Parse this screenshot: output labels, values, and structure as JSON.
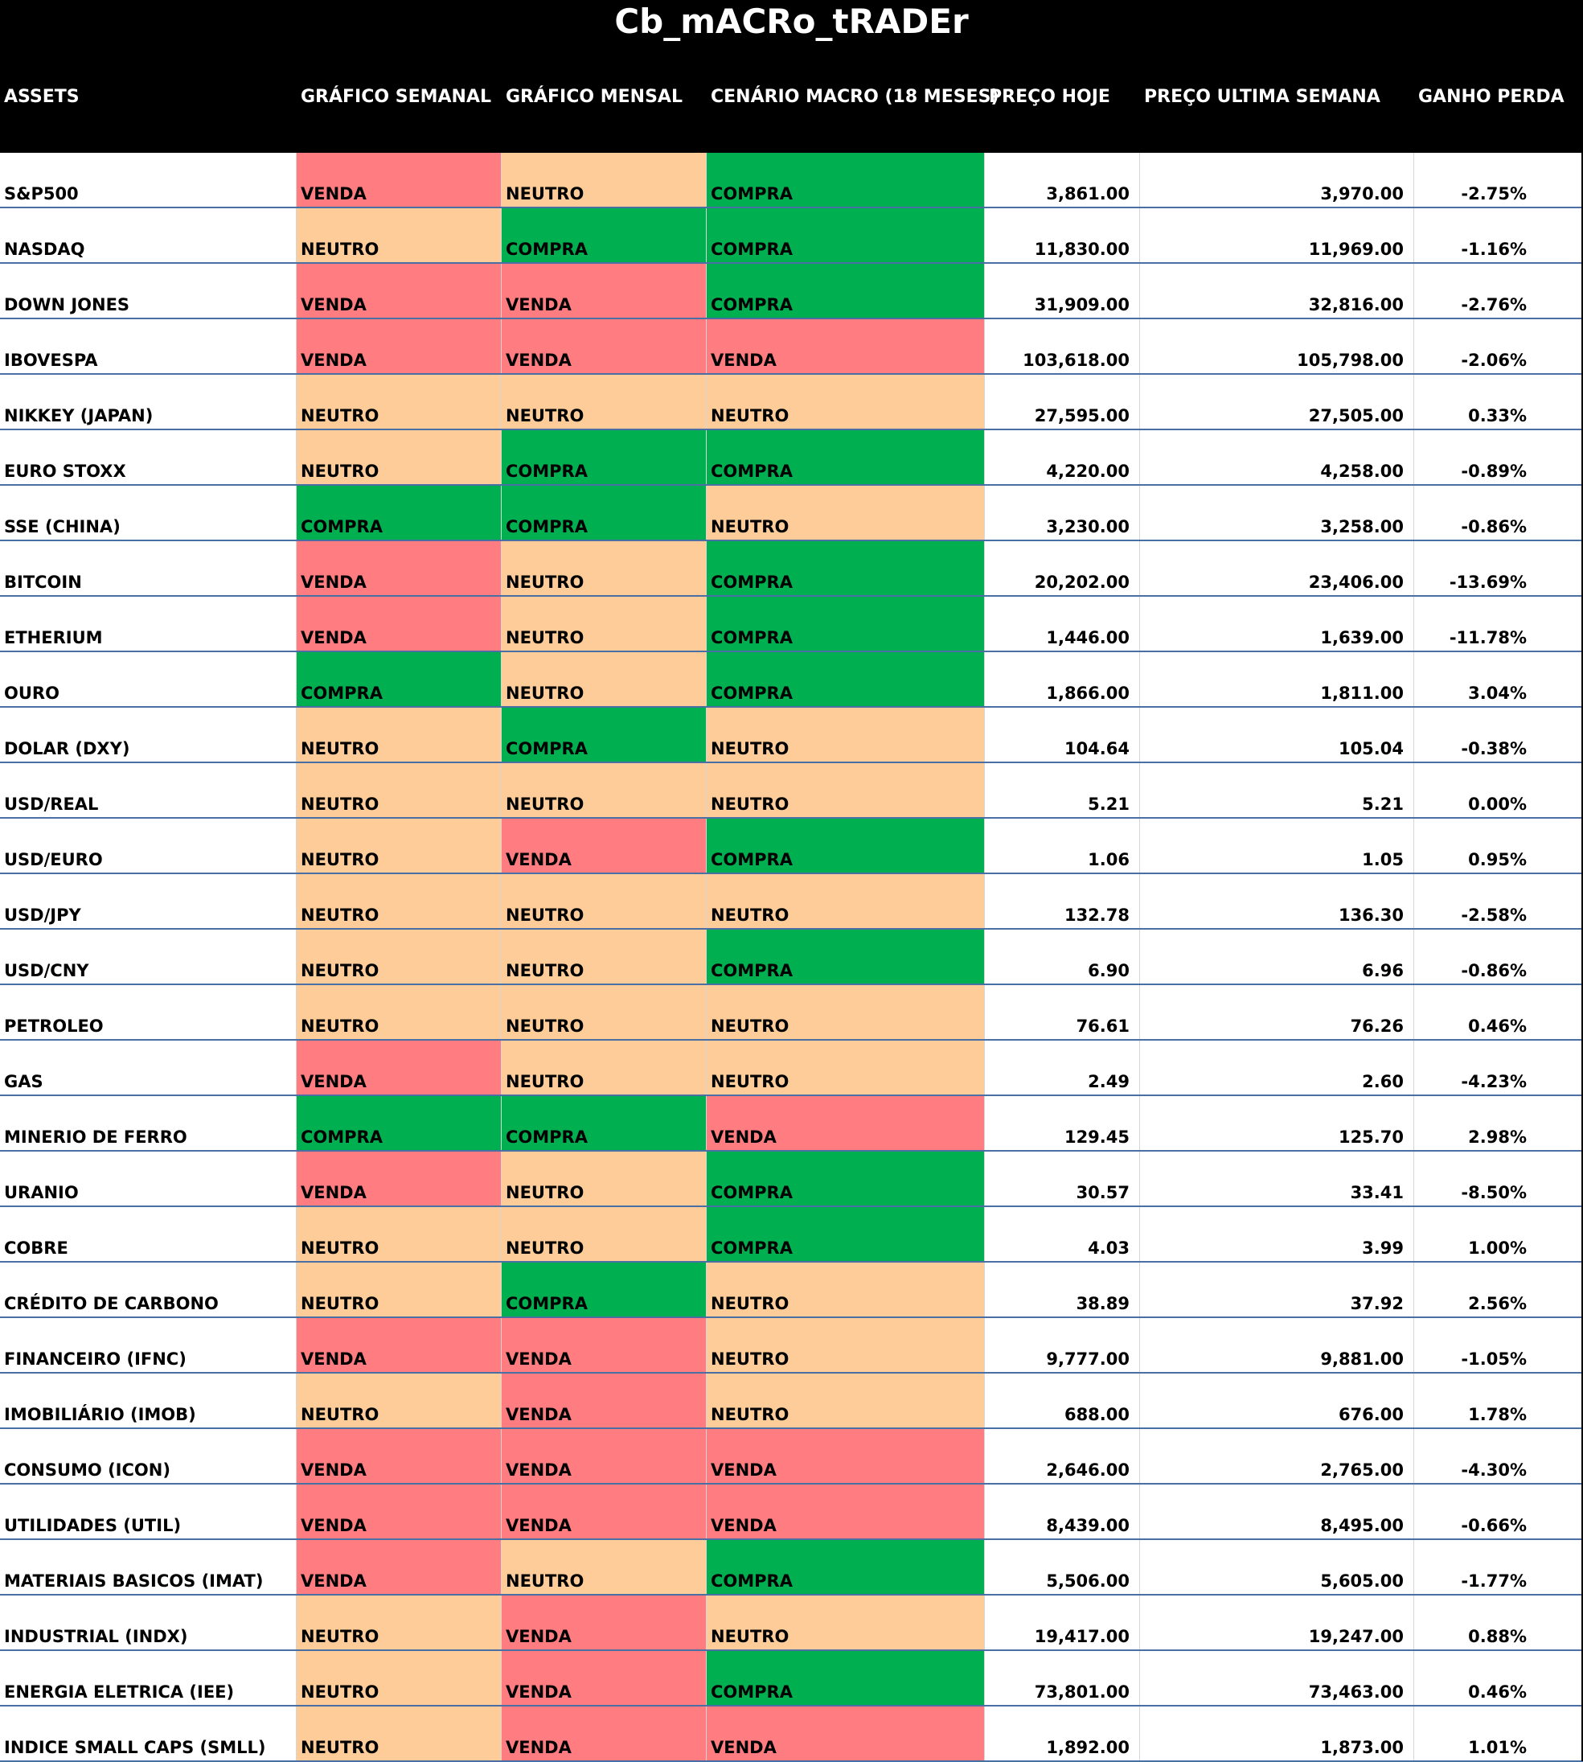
{
  "title": "Cb_mACRo_tRADEr",
  "headers": {
    "assets": "ASSETS",
    "weekly": "GRÁFICO SEMANAL",
    "monthly": "GRÁFICO MENSAL",
    "macro": "CENÁRIO MACRO (18 MESES)",
    "price_today": "PREÇO HOJE",
    "price_last_week": "PREÇO ULTIMA SEMANA",
    "gain_loss": "GANHO PERDA"
  },
  "colors": {
    "VENDA": "#ff7c80",
    "NEUTRO": "#fdcc98",
    "COMPRA": "#00b050"
  },
  "rows": [
    {
      "asset": "S&P500",
      "weekly": "VENDA",
      "monthly": "NEUTRO",
      "macro": "COMPRA",
      "today": "3,861.00",
      "last": "3,970.00",
      "change": "-2.75%"
    },
    {
      "asset": "NASDAQ",
      "weekly": "NEUTRO",
      "monthly": "COMPRA",
      "macro": "COMPRA",
      "today": "11,830.00",
      "last": "11,969.00",
      "change": "-1.16%"
    },
    {
      "asset": "DOWN JONES",
      "weekly": "VENDA",
      "monthly": "VENDA",
      "macro": "COMPRA",
      "today": "31,909.00",
      "last": "32,816.00",
      "change": "-2.76%"
    },
    {
      "asset": "IBOVESPA",
      "weekly": "VENDA",
      "monthly": "VENDA",
      "macro": "VENDA",
      "today": "103,618.00",
      "last": "105,798.00",
      "change": "-2.06%"
    },
    {
      "asset": "NIKKEY (JAPAN)",
      "weekly": "NEUTRO",
      "monthly": "NEUTRO",
      "macro": "NEUTRO",
      "today": "27,595.00",
      "last": "27,505.00",
      "change": "0.33%"
    },
    {
      "asset": "EURO STOXX",
      "weekly": "NEUTRO",
      "monthly": "COMPRA",
      "macro": "COMPRA",
      "today": "4,220.00",
      "last": "4,258.00",
      "change": "-0.89%"
    },
    {
      "asset": "SSE (CHINA)",
      "weekly": "COMPRA",
      "monthly": "COMPRA",
      "macro": "NEUTRO",
      "today": "3,230.00",
      "last": "3,258.00",
      "change": "-0.86%"
    },
    {
      "asset": "BITCOIN",
      "weekly": "VENDA",
      "monthly": "NEUTRO",
      "macro": "COMPRA",
      "today": "20,202.00",
      "last": "23,406.00",
      "change": "-13.69%"
    },
    {
      "asset": "ETHERIUM",
      "weekly": "VENDA",
      "monthly": "NEUTRO",
      "macro": "COMPRA",
      "today": "1,446.00",
      "last": "1,639.00",
      "change": "-11.78%"
    },
    {
      "asset": "OURO",
      "weekly": "COMPRA",
      "monthly": "NEUTRO",
      "macro": "COMPRA",
      "today": "1,866.00",
      "last": "1,811.00",
      "change": "3.04%"
    },
    {
      "asset": "DOLAR (DXY)",
      "weekly": "NEUTRO",
      "monthly": "COMPRA",
      "macro": "NEUTRO",
      "today": "104.64",
      "last": "105.04",
      "change": "-0.38%"
    },
    {
      "asset": "USD/REAL",
      "weekly": "NEUTRO",
      "monthly": "NEUTRO",
      "macro": "NEUTRO",
      "today": "5.21",
      "last": "5.21",
      "change": "0.00%"
    },
    {
      "asset": "USD/EURO",
      "weekly": "NEUTRO",
      "monthly": "VENDA",
      "macro": "COMPRA",
      "today": "1.06",
      "last": "1.05",
      "change": "0.95%"
    },
    {
      "asset": "USD/JPY",
      "weekly": "NEUTRO",
      "monthly": "NEUTRO",
      "macro": "NEUTRO",
      "today": "132.78",
      "last": "136.30",
      "change": "-2.58%"
    },
    {
      "asset": "USD/CNY",
      "weekly": "NEUTRO",
      "monthly": "NEUTRO",
      "macro": "COMPRA",
      "today": "6.90",
      "last": "6.96",
      "change": "-0.86%"
    },
    {
      "asset": "PETROLEO",
      "weekly": "NEUTRO",
      "monthly": "NEUTRO",
      "macro": "NEUTRO",
      "today": "76.61",
      "last": "76.26",
      "change": "0.46%"
    },
    {
      "asset": "GAS",
      "weekly": "VENDA",
      "monthly": "NEUTRO",
      "macro": "NEUTRO",
      "today": "2.49",
      "last": "2.60",
      "change": "-4.23%"
    },
    {
      "asset": "MINERIO DE FERRO",
      "weekly": "COMPRA",
      "monthly": "COMPRA",
      "macro": "VENDA",
      "today": "129.45",
      "last": "125.70",
      "change": "2.98%"
    },
    {
      "asset": "URANIO",
      "weekly": "VENDA",
      "monthly": "NEUTRO",
      "macro": "COMPRA",
      "today": "30.57",
      "last": "33.41",
      "change": "-8.50%"
    },
    {
      "asset": "COBRE",
      "weekly": "NEUTRO",
      "monthly": "NEUTRO",
      "macro": "COMPRA",
      "today": "4.03",
      "last": "3.99",
      "change": "1.00%"
    },
    {
      "asset": "CRÉDITO DE CARBONO",
      "weekly": "NEUTRO",
      "monthly": "COMPRA",
      "macro": "NEUTRO",
      "today": "38.89",
      "last": "37.92",
      "change": "2.56%"
    },
    {
      "asset": "FINANCEIRO (IFNC)",
      "weekly": "VENDA",
      "monthly": "VENDA",
      "macro": "NEUTRO",
      "today": "9,777.00",
      "last": "9,881.00",
      "change": "-1.05%"
    },
    {
      "asset": "IMOBILIÁRIO (IMOB)",
      "weekly": "NEUTRO",
      "monthly": "VENDA",
      "macro": "NEUTRO",
      "today": "688.00",
      "last": "676.00",
      "change": "1.78%"
    },
    {
      "asset": "CONSUMO (ICON)",
      "weekly": "VENDA",
      "monthly": "VENDA",
      "macro": "VENDA",
      "today": "2,646.00",
      "last": "2,765.00",
      "change": "-4.30%"
    },
    {
      "asset": "UTILIDADES (UTIL)",
      "weekly": "VENDA",
      "monthly": "VENDA",
      "macro": "VENDA",
      "today": "8,439.00",
      "last": "8,495.00",
      "change": "-0.66%"
    },
    {
      "asset": "MATERIAIS BASICOS (IMAT)",
      "weekly": "VENDA",
      "monthly": "NEUTRO",
      "macro": "COMPRA",
      "today": "5,506.00",
      "last": "5,605.00",
      "change": "-1.77%"
    },
    {
      "asset": "INDUSTRIAL (INDX)",
      "weekly": "NEUTRO",
      "monthly": "VENDA",
      "macro": "NEUTRO",
      "today": "19,417.00",
      "last": "19,247.00",
      "change": "0.88%"
    },
    {
      "asset": "ENERGIA ELETRICA (IEE)",
      "weekly": "NEUTRO",
      "monthly": "VENDA",
      "macro": "COMPRA",
      "today": "73,801.00",
      "last": "73,463.00",
      "change": "0.46%"
    },
    {
      "asset": "INDICE SMALL CAPS (SMLL)",
      "weekly": "NEUTRO",
      "monthly": "VENDA",
      "macro": "VENDA",
      "today": "1,892.00",
      "last": "1,873.00",
      "change": "1.01%"
    }
  ]
}
